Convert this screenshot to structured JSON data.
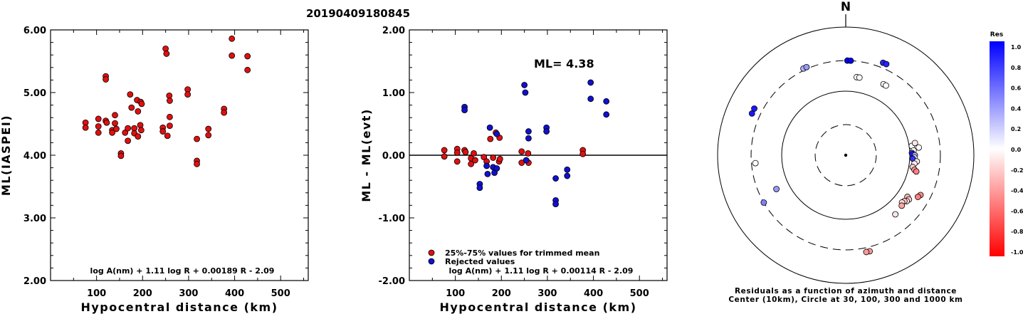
{
  "title": "20190409180845",
  "chart_data": [
    {
      "type": "scatter",
      "xlabel": "Hypocentral distance (km)",
      "ylabel": "ML(IASPEI)",
      "xlim": [
        0,
        560
      ],
      "ylim": [
        2.0,
        6.0
      ],
      "xticks": [
        "100",
        "200",
        "300",
        "400",
        "500"
      ],
      "yticks": [
        "2.00",
        "3.00",
        "4.00",
        "5.00",
        "6.00"
      ],
      "formula": "log A(nm) + 1.11 log R + 0.00189 R - 2.09",
      "color": "#e01010",
      "points": [
        [
          76,
          4.52
        ],
        [
          76,
          4.44
        ],
        [
          104,
          4.58
        ],
        [
          104,
          4.46
        ],
        [
          104,
          4.36
        ],
        [
          120,
          5.26
        ],
        [
          120,
          5.21
        ],
        [
          120,
          4.55
        ],
        [
          122,
          4.52
        ],
        [
          134,
          4.4
        ],
        [
          134,
          4.36
        ],
        [
          140,
          4.64
        ],
        [
          140,
          4.51
        ],
        [
          143,
          4.42
        ],
        [
          153,
          4.03
        ],
        [
          153,
          3.99
        ],
        [
          162,
          4.36
        ],
        [
          168,
          4.43
        ],
        [
          168,
          4.23
        ],
        [
          173,
          4.97
        ],
        [
          176,
          4.76
        ],
        [
          182,
          4.43
        ],
        [
          182,
          4.35
        ],
        [
          188,
          4.88
        ],
        [
          190,
          4.7
        ],
        [
          190,
          4.3
        ],
        [
          195,
          4.48
        ],
        [
          196,
          4.85
        ],
        [
          197,
          4.4
        ],
        [
          198,
          4.82
        ],
        [
          244,
          4.44
        ],
        [
          244,
          4.38
        ],
        [
          250,
          5.7
        ],
        [
          252,
          5.62
        ],
        [
          254,
          4.31
        ],
        [
          258,
          4.95
        ],
        [
          259,
          4.87
        ],
        [
          259,
          4.61
        ],
        [
          259,
          4.47
        ],
        [
          298,
          5.05
        ],
        [
          298,
          4.97
        ],
        [
          318,
          4.26
        ],
        [
          318,
          3.91
        ],
        [
          318,
          3.86
        ],
        [
          343,
          4.42
        ],
        [
          343,
          4.32
        ],
        [
          377,
          4.74
        ],
        [
          377,
          4.68
        ],
        [
          394,
          5.86
        ],
        [
          394,
          5.59
        ],
        [
          428,
          5.58
        ],
        [
          428,
          5.36
        ]
      ]
    },
    {
      "type": "scatter",
      "xlabel": "Hypocentral distance (km)",
      "ylabel": "ML - ML(evt)",
      "xlim": [
        0,
        560
      ],
      "ylim": [
        -2.0,
        2.0
      ],
      "xticks": [
        "100",
        "200",
        "300",
        "400",
        "500"
      ],
      "yticks": [
        "-2.00",
        "-1.00",
        "0.00",
        "1.00",
        "2.00"
      ],
      "annotation": "ML=  4.38",
      "formula": "log A(nm) + 1.11 log R + 0.00114 R - 2.09",
      "legend": {
        "placement": "bottom-left",
        "entries": [
          {
            "label": "25%-75% values for trimmed mean",
            "color": "#e01010"
          },
          {
            "label": "Rejected values",
            "color": "#1010d0"
          }
        ]
      },
      "series": [
        {
          "kind": "trimmed",
          "color": "#e01010",
          "points": [
            [
              76,
              0.08
            ],
            [
              76,
              -0.02
            ],
            [
              104,
              0.1
            ],
            [
              104,
              0.04
            ],
            [
              104,
              -0.1
            ],
            [
              120,
              0.08
            ],
            [
              122,
              0.05
            ],
            [
              134,
              -0.05
            ],
            [
              134,
              -0.14
            ],
            [
              140,
              0.03
            ],
            [
              143,
              -0.08
            ],
            [
              162,
              -0.03
            ],
            [
              168,
              -0.1
            ],
            [
              176,
              0.26
            ],
            [
              182,
              -0.04
            ],
            [
              188,
              0.36
            ],
            [
              195,
              -0.1
            ],
            [
              196,
              0.28
            ],
            [
              197,
              -0.06
            ],
            [
              244,
              0.06
            ],
            [
              244,
              -0.12
            ],
            [
              258,
              0.03
            ],
            [
              259,
              -0.12
            ],
            [
              377,
              0.08
            ],
            [
              377,
              0.02
            ]
          ]
        },
        {
          "kind": "rejected",
          "color": "#1010d0",
          "points": [
            [
              120,
              0.77
            ],
            [
              120,
              0.72
            ],
            [
              153,
              -0.46
            ],
            [
              153,
              -0.52
            ],
            [
              168,
              -0.17
            ],
            [
              170,
              -0.3
            ],
            [
              175,
              0.44
            ],
            [
              182,
              -0.19
            ],
            [
              185,
              -0.28
            ],
            [
              190,
              -0.21
            ],
            [
              190,
              0.34
            ],
            [
              250,
              1.12
            ],
            [
              252,
              1.0
            ],
            [
              254,
              -0.08
            ],
            [
              259,
              0.38
            ],
            [
              259,
              0.27
            ],
            [
              298,
              0.44
            ],
            [
              298,
              0.38
            ],
            [
              318,
              -0.37
            ],
            [
              318,
              -0.72
            ],
            [
              318,
              -0.78
            ],
            [
              343,
              -0.23
            ],
            [
              343,
              -0.33
            ],
            [
              394,
              1.16
            ],
            [
              394,
              0.9
            ],
            [
              428,
              0.86
            ],
            [
              428,
              0.65
            ]
          ]
        }
      ]
    },
    {
      "type": "scatter",
      "kind": "polar-residuals",
      "north_label": "N",
      "caption": [
        "Residuals as a function of azimuth and distance",
        "Center (10km), Circle at 30, 100, 300 and 1000 km"
      ],
      "colorbar": {
        "label": "Res",
        "range": [
          -1.0,
          1.0
        ],
        "ticks": [
          "1.0",
          "0.8",
          "0.6",
          "0.4",
          "0.2",
          "0.0",
          "-0.2",
          "-0.4",
          "-0.6",
          "-0.8",
          "-1.0"
        ],
        "high_color": "#0000ff",
        "low_color": "#ff0000"
      },
      "rings_km": [
        30,
        100,
        300,
        1000
      ],
      "points": [
        {
          "az": 1,
          "dist": 300,
          "res": 1.0
        },
        {
          "az": 3,
          "dist": 300,
          "res": 1.0
        },
        {
          "az": 8,
          "dist": 170,
          "res": 0.0
        },
        {
          "az": 10,
          "dist": 170,
          "res": 0.0
        },
        {
          "az": 28,
          "dist": 180,
          "res": 0.0
        },
        {
          "az": 30,
          "dist": 180,
          "res": 0.0
        },
        {
          "az": 22,
          "dist": 360,
          "res": 0.85
        },
        {
          "az": 24,
          "dist": 360,
          "res": 0.85
        },
        {
          "az": 82,
          "dist": 110,
          "res": 0.0
        },
        {
          "az": 86,
          "dist": 115,
          "res": 0.0
        },
        {
          "az": 88,
          "dist": 108,
          "res": 0.6
        },
        {
          "az": 89,
          "dist": 110,
          "res": 0.9
        },
        {
          "az": 90,
          "dist": 120,
          "res": 0.35
        },
        {
          "az": 92,
          "dist": 118,
          "res": 0.0
        },
        {
          "az": 93,
          "dist": 112,
          "res": 0.8
        },
        {
          "az": 84,
          "dist": 140,
          "res": 0.0
        },
        {
          "az": 80,
          "dist": 125,
          "res": -0.1
        },
        {
          "az": 95,
          "dist": 130,
          "res": -0.1
        },
        {
          "az": 97,
          "dist": 120,
          "res": -0.05
        },
        {
          "az": 100,
          "dist": 115,
          "res": -0.2
        },
        {
          "az": 102,
          "dist": 125,
          "res": -0.4
        },
        {
          "az": 103,
          "dist": 135,
          "res": -0.5
        },
        {
          "az": 124,
          "dist": 145,
          "res": -0.3
        },
        {
          "az": 125,
          "dist": 160,
          "res": -0.2
        },
        {
          "az": 127,
          "dist": 155,
          "res": -0.1
        },
        {
          "az": 128,
          "dist": 145,
          "res": -0.25
        },
        {
          "az": 130,
          "dist": 140,
          "res": -0.15
        },
        {
          "az": 132,
          "dist": 150,
          "res": -0.35
        },
        {
          "az": 118,
          "dist": 210,
          "res": -0.45
        },
        {
          "az": 120,
          "dist": 200,
          "res": -0.5
        },
        {
          "az": 140,
          "dist": 160,
          "res": -0.1
        },
        {
          "az": 166,
          "dist": 350,
          "res": -0.4
        },
        {
          "az": 168,
          "dist": 350,
          "res": -0.4
        },
        {
          "az": 240,
          "dist": 300,
          "res": 0.5
        },
        {
          "az": 244,
          "dist": 160,
          "res": 0.4
        },
        {
          "az": 265,
          "dist": 260,
          "res": 0.0
        },
        {
          "az": 294,
          "dist": 400,
          "res": 0.9
        },
        {
          "az": 297,
          "dist": 400,
          "res": 0.9
        },
        {
          "az": 334,
          "dist": 320,
          "res": 0.3
        },
        {
          "az": 336,
          "dist": 320,
          "res": 0.4
        }
      ]
    }
  ]
}
